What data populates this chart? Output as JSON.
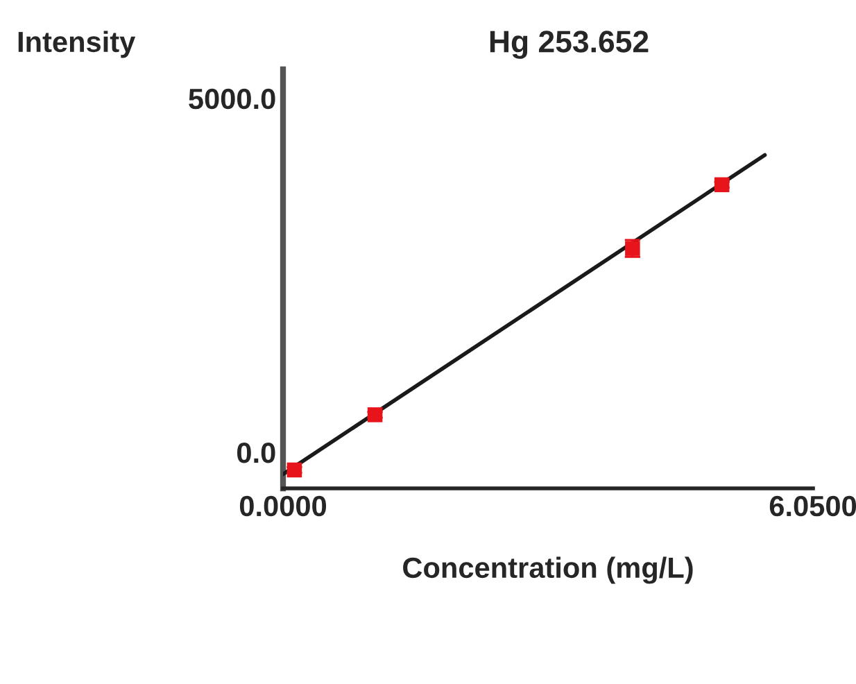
{
  "chart_data": {
    "type": "scatter",
    "title": "Hg 253.652",
    "xlabel": "Concentration (mg/L)",
    "ylabel": "Intensity",
    "series": [
      {
        "type": "scatter",
        "marker": "square",
        "color": "#e8141c",
        "x": [
          0.13,
          1.05,
          3.99,
          5.01
        ],
        "values": [
          -250,
          530,
          2880,
          3780
        ],
        "errors": [
          40,
          40,
          120,
          40
        ]
      },
      {
        "type": "line",
        "color": "#1a1a1a",
        "x": [
          0,
          5.5
        ],
        "values": [
          -310,
          4200
        ]
      }
    ],
    "xlim": [
      0,
      6.05
    ],
    "xticks": [
      {
        "value": 0,
        "label": "0.0000"
      },
      {
        "value": 6.05,
        "label": "6.0500"
      }
    ],
    "ylim": [
      -510,
      5410
    ],
    "yticks": [
      {
        "value": 0,
        "label": "0.0"
      },
      {
        "value": 5000,
        "label": "5000.0"
      }
    ],
    "grid": false,
    "legend": false
  }
}
